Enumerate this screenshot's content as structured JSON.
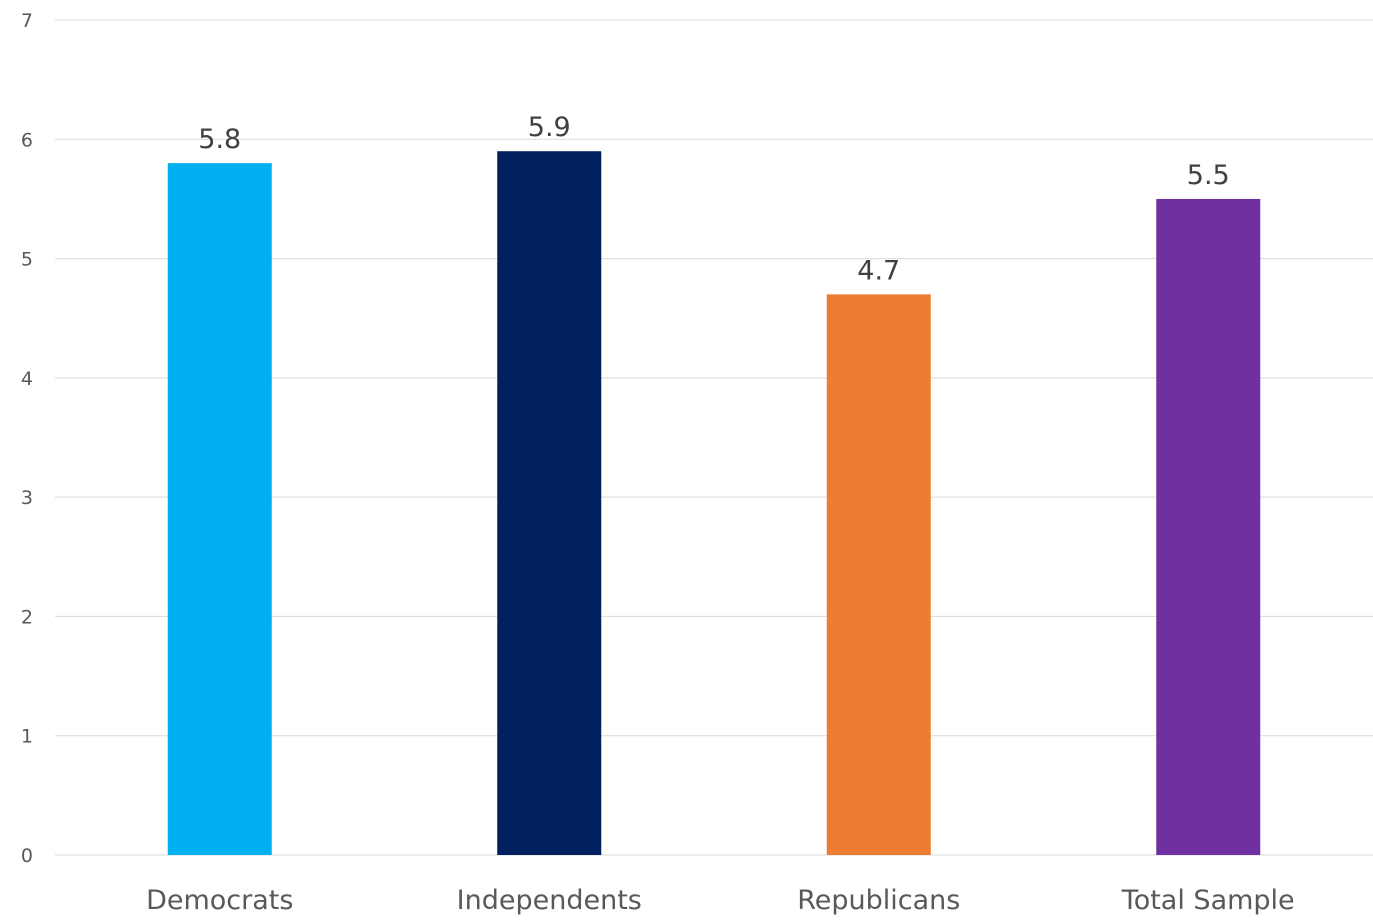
{
  "chart_data": {
    "type": "bar",
    "categories": [
      "Democrats",
      "Independents",
      "Republicans",
      "Total Sample"
    ],
    "values": [
      5.8,
      5.9,
      4.7,
      5.5
    ],
    "data_labels": [
      "5.8",
      "5.9",
      "4.7",
      "5.5"
    ],
    "colors": [
      "#00b0f0",
      "#002060",
      "#ed7d31",
      "#7030a0"
    ],
    "title": "",
    "xlabel": "",
    "ylabel": "",
    "ylim": [
      0,
      7
    ],
    "yticks": [
      "0",
      "1",
      "2",
      "3",
      "4",
      "5",
      "6",
      "7"
    ],
    "grid": true,
    "legend": "none"
  }
}
